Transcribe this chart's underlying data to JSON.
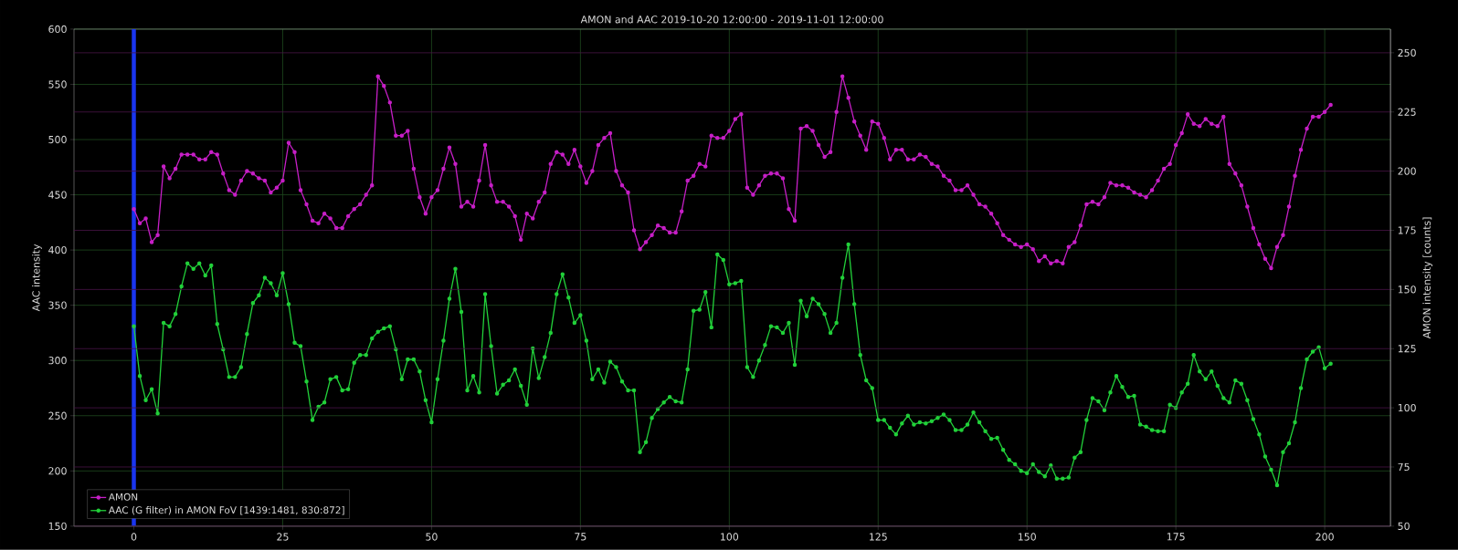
{
  "chart_data": {
    "type": "line",
    "title": "AMON and AAC     2019-10-20 12:00:00 - 2019-11-01 12:00:00",
    "ylabel": "AAC intensity",
    "y2label": "AMON intensity [counts]",
    "x": [
      0,
      1,
      2,
      3,
      4,
      5,
      6,
      7,
      8,
      9,
      10,
      11,
      12,
      13,
      14,
      15,
      16,
      17,
      18,
      19,
      20,
      21,
      22,
      23,
      24,
      25,
      26,
      27,
      28,
      29,
      30,
      31,
      32,
      33,
      34,
      35,
      36,
      37,
      38,
      39,
      40,
      41,
      42,
      43,
      44,
      45,
      46,
      47,
      48,
      49,
      50,
      51,
      52,
      53,
      54,
      55,
      56,
      57,
      58,
      59,
      60,
      61,
      62,
      63,
      64,
      65,
      66,
      67,
      68,
      69,
      70,
      71,
      72,
      73,
      74,
      75,
      76,
      77,
      78,
      79,
      80,
      81,
      82,
      83,
      84,
      85,
      86,
      87,
      88,
      89,
      90,
      91,
      92,
      93,
      94,
      95,
      96,
      97,
      98,
      99,
      100,
      101,
      102,
      103,
      104,
      105,
      106,
      107,
      108,
      109,
      110,
      111,
      112,
      113,
      114,
      115,
      116,
      117,
      118,
      119,
      120,
      121,
      122,
      123,
      124,
      125,
      126,
      127,
      128,
      129,
      130,
      131,
      132,
      133,
      134,
      135,
      136,
      137,
      138,
      139,
      140,
      141,
      142,
      143,
      144,
      145,
      146,
      147,
      148,
      149,
      150,
      151,
      152,
      153,
      154,
      155,
      156,
      157,
      158,
      159,
      160,
      161,
      162,
      163,
      164,
      165,
      166,
      167,
      168,
      169,
      170,
      171,
      172,
      173,
      174,
      175,
      176,
      177,
      178,
      179,
      180,
      181,
      182,
      183,
      184,
      185,
      186,
      187,
      188,
      189,
      190,
      191,
      192,
      193,
      194,
      195,
      196,
      197,
      198,
      199,
      200,
      201
    ],
    "series": [
      {
        "name": "AMON",
        "color": "#c71fc7",
        "axis": "y2",
        "values": [
          184,
          178,
          180,
          170,
          173,
          202,
          197,
          201,
          207,
          207,
          207,
          205,
          205,
          208,
          207,
          199,
          192,
          190,
          196,
          200,
          199,
          197,
          196,
          191,
          193,
          196,
          212,
          208,
          192,
          186,
          179,
          178,
          182,
          180,
          176,
          176,
          181,
          184,
          186,
          190,
          194,
          240,
          236,
          229,
          215,
          215,
          217,
          201,
          189,
          182,
          189,
          192,
          201,
          210,
          203,
          185,
          187,
          185,
          196,
          211,
          194,
          187,
          187,
          185,
          181,
          171,
          182,
          180,
          187,
          191,
          203,
          208,
          207,
          203,
          209,
          202,
          195,
          200,
          211,
          214,
          216,
          200,
          194,
          191,
          175,
          167,
          170,
          173,
          177,
          176,
          174,
          174,
          183,
          196,
          198,
          203,
          202,
          215,
          214,
          214,
          217,
          222,
          224,
          193,
          190,
          194,
          198,
          199,
          199,
          197,
          184,
          179,
          218,
          219,
          217,
          211,
          206,
          208,
          225,
          240,
          231,
          221,
          215,
          209,
          221,
          220,
          214,
          205,
          209,
          209,
          205,
          205,
          207,
          206,
          203,
          202,
          198,
          196,
          192,
          192,
          194,
          190,
          186,
          185,
          182,
          178,
          173,
          171,
          169,
          168,
          169,
          167,
          162,
          164,
          161,
          162,
          161,
          168,
          170,
          177,
          186,
          187,
          186,
          189,
          195,
          194,
          194,
          193,
          191,
          190,
          189,
          192,
          196,
          201,
          203,
          211,
          216,
          224,
          220,
          219,
          222,
          220,
          219,
          223,
          203,
          199,
          194,
          185,
          176,
          169,
          163,
          159,
          168,
          173,
          185,
          198,
          209,
          218,
          223,
          223,
          225,
          228
        ]
      },
      {
        "name": "AAC (G filter) in AMON FoV [1439:1481, 830:872]",
        "color": "#22d13a",
        "axis": "y",
        "values": [
          331,
          286,
          264,
          274,
          252,
          334,
          331,
          342,
          367,
          388,
          383,
          388,
          377,
          386,
          333,
          310,
          285,
          285,
          294,
          324,
          352,
          359,
          375,
          370,
          359,
          379,
          351,
          316,
          313,
          281,
          246,
          258,
          262,
          283,
          285,
          273,
          274,
          298,
          305,
          305,
          320,
          326,
          329,
          331,
          310,
          283,
          301,
          301,
          290,
          264,
          244,
          283,
          318,
          356,
          383,
          344,
          273,
          286,
          271,
          360,
          313,
          270,
          278,
          282,
          292,
          277,
          260,
          311,
          284,
          303,
          325,
          360,
          378,
          357,
          334,
          341,
          318,
          283,
          292,
          280,
          299,
          294,
          281,
          273,
          273,
          217,
          226,
          248,
          256,
          262,
          267,
          263,
          262,
          292,
          345,
          346,
          362,
          330,
          396,
          391,
          369,
          370,
          372,
          294,
          285,
          300,
          314,
          331,
          330,
          325,
          334,
          296,
          354,
          340,
          356,
          351,
          342,
          325,
          334,
          375,
          405,
          351,
          305,
          282,
          275,
          246,
          246,
          239,
          233,
          243,
          250,
          242,
          244,
          243,
          245,
          248,
          251,
          246,
          237,
          237,
          242,
          253,
          244,
          236,
          229,
          230,
          219,
          210,
          206,
          200,
          198,
          206,
          199,
          195,
          205,
          193,
          193,
          194,
          212,
          217,
          246,
          266,
          263,
          255,
          271,
          286,
          276,
          267,
          268,
          242,
          240,
          237,
          236,
          236,
          260,
          257,
          271,
          279,
          305,
          290,
          283,
          290,
          277,
          266,
          262,
          282,
          279,
          264,
          247,
          233,
          213,
          201,
          187,
          217,
          225,
          244,
          275,
          301,
          308,
          312,
          293,
          297
        ]
      }
    ],
    "xlim": [
      -10.05,
      211.05
    ],
    "xticks": [
      0,
      25,
      50,
      75,
      100,
      125,
      150,
      175,
      200
    ],
    "ylim": [
      150,
      600
    ],
    "yticks": [
      150,
      200,
      250,
      300,
      350,
      400,
      450,
      500,
      550,
      600
    ],
    "y2lim": [
      50,
      260
    ],
    "y2ticks": [
      50,
      75,
      100,
      125,
      150,
      175,
      200,
      225,
      250
    ],
    "ref_lines": [
      {
        "axis": "x",
        "value": 0,
        "color": "#1a35f0"
      }
    ],
    "grid": true,
    "legend": "bottom left",
    "marker": "circle",
    "line_style": "solid"
  }
}
